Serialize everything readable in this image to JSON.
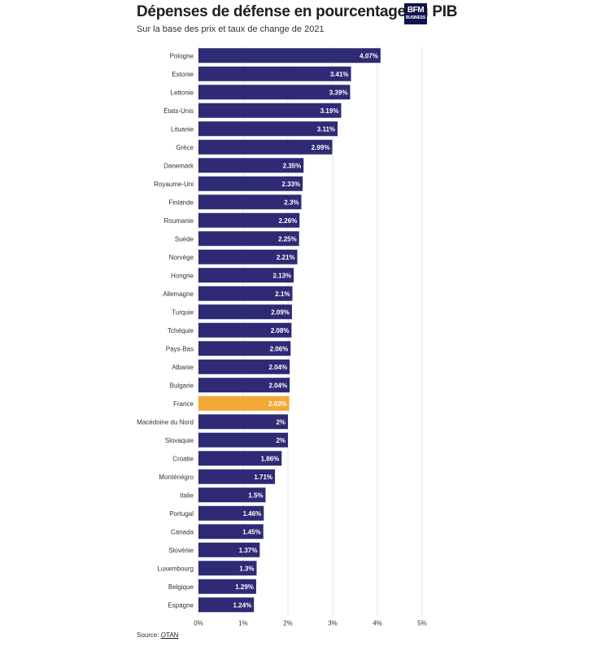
{
  "chart_data": {
    "type": "bar",
    "orientation": "horizontal",
    "title": "Dépenses de défense en pourcentage du PIB",
    "subtitle": "Sur la base des prix et taux de change de 2021",
    "categories": [
      "Pologne",
      "Estonie",
      "Lettonie",
      "États-Unis",
      "Lituanie",
      "Grèce",
      "Danemark",
      "Royaume-Uni",
      "Finlande",
      "Roumanie",
      "Suède",
      "Norvège",
      "Hongrie",
      "Allemagne",
      "Turquie",
      "Tchéquie",
      "Pays-Bas",
      "Albanie",
      "Bulgarie",
      "France",
      "Macédoine du Nord",
      "Slovaquie",
      "Croatie",
      "Monténégro",
      "Italie",
      "Portugal",
      "Canada",
      "Slovénie",
      "Luxembourg",
      "Belgique",
      "Espagne"
    ],
    "values": [
      4.07,
      3.41,
      3.39,
      3.19,
      3.11,
      2.99,
      2.35,
      2.33,
      2.3,
      2.26,
      2.25,
      2.21,
      2.13,
      2.1,
      2.09,
      2.08,
      2.06,
      2.04,
      2.04,
      2.03,
      2,
      2,
      1.86,
      1.71,
      1.5,
      1.46,
      1.45,
      1.37,
      1.3,
      1.29,
      1.24
    ],
    "value_labels": [
      "4.07%",
      "3.41%",
      "3.39%",
      "3.19%",
      "3.11%",
      "2.99%",
      "2.35%",
      "2.33%",
      "2.3%",
      "2.26%",
      "2.25%",
      "2.21%",
      "2.13%",
      "2.1%",
      "2.09%",
      "2.08%",
      "2.06%",
      "2.04%",
      "2.04%",
      "2.03%",
      "2%",
      "2%",
      "1.86%",
      "1.71%",
      "1.5%",
      "1.46%",
      "1.45%",
      "1.37%",
      "1.3%",
      "1.29%",
      "1.24%"
    ],
    "xlim": [
      0,
      5
    ],
    "x_ticks": [
      0,
      1,
      2,
      3,
      4,
      5
    ],
    "x_tick_labels": [
      "0%",
      "1%",
      "2%",
      "3%",
      "4%",
      "5%"
    ],
    "grid": true,
    "colors": {
      "default": "#2e2a75",
      "highlight": "#f3a938"
    },
    "highlight_category": "France"
  },
  "brand": {
    "logo_top": "BFM",
    "logo_bottom": "BUSINESS"
  },
  "footer": {
    "source_prefix": "Source: ",
    "source_link": "OTAN"
  }
}
